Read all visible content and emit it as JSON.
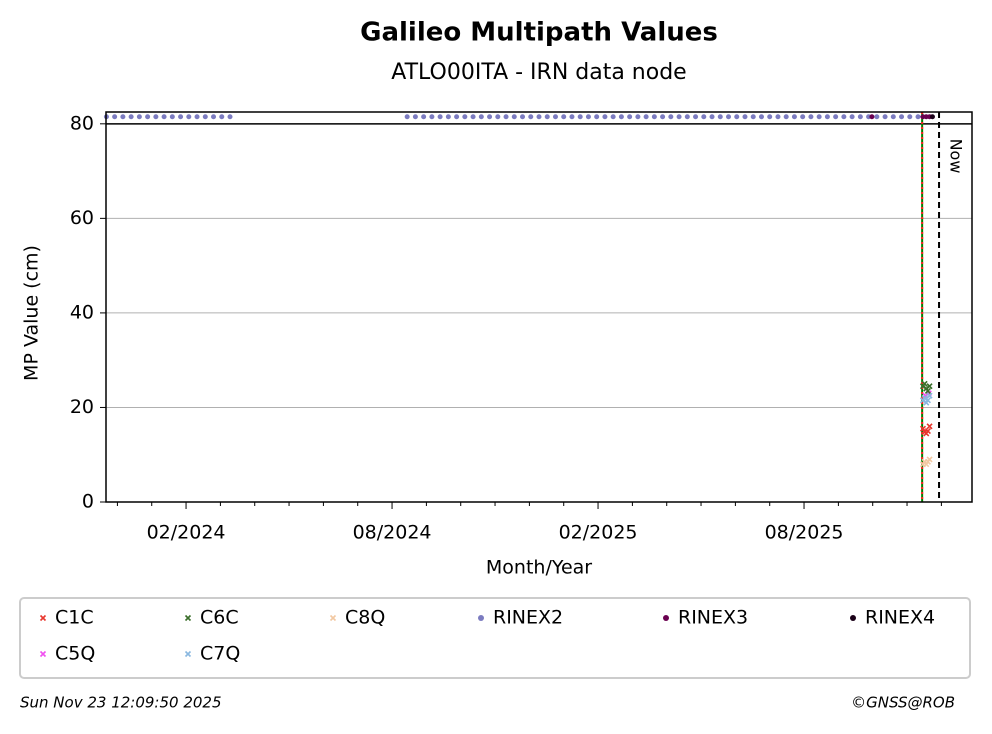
{
  "chart_data": {
    "type": "scatter",
    "title": "Galileo Multipath Values",
    "subtitle": "ATLO00ITA - IRN data node",
    "x_label": "Month/Year",
    "y_label": "MP Value (cm)",
    "xlim": [
      2023.889,
      2025.991
    ],
    "ylim": [
      0,
      82.5
    ],
    "xticks": [
      {
        "value": 2024.0833,
        "label": "02/2024"
      },
      {
        "value": 2024.5833,
        "label": "08/2024"
      },
      {
        "value": 2025.0833,
        "label": "02/2025"
      },
      {
        "value": 2025.5833,
        "label": "08/2025"
      }
    ],
    "xminorticks": [
      2023.9167,
      2024.0,
      2024.1667,
      2024.25,
      2024.3333,
      2024.4167,
      2024.5,
      2024.6667,
      2024.75,
      2024.8333,
      2024.9167,
      2025.0,
      2025.1667,
      2025.25,
      2025.3333,
      2025.4167,
      2025.5,
      2025.6667,
      2025.75,
      2025.8333,
      2025.9167
    ],
    "yticks": [
      0,
      20,
      40,
      60,
      80
    ],
    "grid": true,
    "separator_y": 80,
    "vlines": [
      {
        "x": 2025.87,
        "color": "#008000",
        "style": "solid"
      },
      {
        "x": 2025.87,
        "color": "#ff2020",
        "style": "dotted"
      },
      {
        "x": 2025.911,
        "color": "#000000",
        "style": "dashed",
        "label": "Now"
      }
    ],
    "legend_columns": 6,
    "series": [
      {
        "name": "C1C",
        "color": "#e8372e",
        "marker": "x",
        "x": [
          2025.872,
          2025.876,
          2025.88,
          2025.884,
          2025.888
        ],
        "values": [
          15.5,
          14.8,
          14.5,
          15,
          16
        ]
      },
      {
        "name": "C5Q",
        "color": "#f050f0",
        "marker": "x",
        "x": [
          2025.878,
          2025.886
        ],
        "values": [
          22.5,
          23
        ]
      },
      {
        "name": "C6C",
        "color": "#3a6e2a",
        "marker": "x",
        "x": [
          2025.872,
          2025.876,
          2025.88,
          2025.884,
          2025.888
        ],
        "values": [
          24.5,
          25,
          24,
          23.5,
          24.5
        ]
      },
      {
        "name": "C7Q",
        "color": "#8ab8e0",
        "marker": "x",
        "x": [
          2025.872,
          2025.876,
          2025.88,
          2025.884,
          2025.888
        ],
        "values": [
          21.5,
          22,
          21,
          21.5,
          22.5
        ]
      },
      {
        "name": "C8Q",
        "color": "#f2c8a2",
        "marker": "x",
        "x": [
          2025.872,
          2025.876,
          2025.88,
          2025.884,
          2025.888
        ],
        "values": [
          8,
          8.5,
          8,
          8.5,
          9
        ]
      },
      {
        "name": "RINEX2",
        "color": "#7b7bc0",
        "marker": "o",
        "x": [
          2023.89,
          2023.91,
          2023.93,
          2023.95,
          2023.97,
          2023.99,
          2024.01,
          2024.03,
          2024.05,
          2024.07,
          2024.09,
          2024.11,
          2024.13,
          2024.15,
          2024.17,
          2024.19,
          2024.62,
          2024.64,
          2024.66,
          2024.68,
          2024.7,
          2024.72,
          2024.74,
          2024.76,
          2024.78,
          2024.8,
          2024.82,
          2024.84,
          2024.86,
          2024.88,
          2024.9,
          2024.92,
          2024.94,
          2024.96,
          2024.98,
          2025.0,
          2025.02,
          2025.04,
          2025.06,
          2025.08,
          2025.1,
          2025.12,
          2025.14,
          2025.16,
          2025.18,
          2025.2,
          2025.22,
          2025.24,
          2025.26,
          2025.28,
          2025.3,
          2025.32,
          2025.34,
          2025.36,
          2025.38,
          2025.4,
          2025.42,
          2025.44,
          2025.46,
          2025.48,
          2025.5,
          2025.52,
          2025.54,
          2025.56,
          2025.58,
          2025.6,
          2025.62,
          2025.64,
          2025.66,
          2025.68,
          2025.7,
          2025.72,
          2025.74,
          2025.76,
          2025.78,
          2025.8,
          2025.82,
          2025.84,
          2025.86
        ],
        "values": [
          81.5,
          81.5,
          81.5,
          81.5,
          81.5,
          81.5,
          81.5,
          81.5,
          81.5,
          81.5,
          81.5,
          81.5,
          81.5,
          81.5,
          81.5,
          81.5,
          81.5,
          81.5,
          81.5,
          81.5,
          81.5,
          81.5,
          81.5,
          81.5,
          81.5,
          81.5,
          81.5,
          81.5,
          81.5,
          81.5,
          81.5,
          81.5,
          81.5,
          81.5,
          81.5,
          81.5,
          81.5,
          81.5,
          81.5,
          81.5,
          81.5,
          81.5,
          81.5,
          81.5,
          81.5,
          81.5,
          81.5,
          81.5,
          81.5,
          81.5,
          81.5,
          81.5,
          81.5,
          81.5,
          81.5,
          81.5,
          81.5,
          81.5,
          81.5,
          81.5,
          81.5,
          81.5,
          81.5,
          81.5,
          81.5,
          81.5,
          81.5,
          81.5,
          81.5,
          81.5,
          81.5,
          81.5,
          81.5,
          81.5,
          81.5,
          81.5,
          81.5,
          81.5,
          81.5
        ]
      },
      {
        "name": "RINEX3",
        "color": "#6a0050",
        "marker": "o",
        "x": [
          2025.748,
          2025.872,
          2025.88,
          2025.888
        ],
        "values": [
          81.5,
          81.5,
          81.5,
          81.5
        ]
      },
      {
        "name": "RINEX4",
        "color": "#1a0018",
        "marker": "o",
        "x": [
          2025.895
        ],
        "values": [
          81.5
        ]
      }
    ],
    "timestamp": "Sun Nov 23 12:09:50 2025",
    "credit": "©GNSS@ROB"
  }
}
